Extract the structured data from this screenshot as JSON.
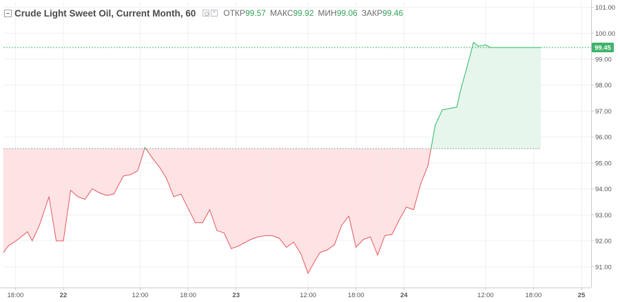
{
  "legend": {
    "title": "Crude Light Sweet Oil, Current Month, 60",
    "open_label": "ОТКР",
    "open_value": "99.57",
    "high_label": "МАКС",
    "high_value": "99.92",
    "low_label": "МИН",
    "low_value": "99.06",
    "close_label": "ЗАКР",
    "close_value": "99.46"
  },
  "colors": {
    "up": "#3dbb6e",
    "down": "#e8636a",
    "up_fill": "#e6f6ec",
    "down_fill": "#fde3e4",
    "price_badge": "#3fb36a",
    "grid": "#eef0f2",
    "axis_text": "#555555"
  },
  "chart_data": {
    "type": "area",
    "symbol": "Crude Light Sweet Oil",
    "interval": "60",
    "baseline": 95.55,
    "current_price": 99.45,
    "current_price_label": "99.45",
    "ylim": [
      90.2,
      101.2
    ],
    "yticks": [
      "91.00",
      "92.00",
      "93.00",
      "94.00",
      "95.00",
      "96.00",
      "97.00",
      "98.00",
      "99.00",
      "100.00",
      "101.00"
    ],
    "xticks": [
      {
        "label": "18:00",
        "x": 2.5,
        "bold": false
      },
      {
        "label": "22",
        "x": 12.5,
        "bold": true
      },
      {
        "label": "12:00",
        "x": 28.5,
        "bold": false
      },
      {
        "label": "18:00",
        "x": 38.5,
        "bold": false
      },
      {
        "label": "23",
        "x": 48.5,
        "bold": true
      },
      {
        "label": "12:00",
        "x": 63.5,
        "bold": false
      },
      {
        "label": "18:00",
        "x": 73.5,
        "bold": false
      },
      {
        "label": "24",
        "x": 83.5,
        "bold": true
      },
      {
        "label": "12:00",
        "x": 100.5,
        "bold": false
      },
      {
        "label": "18:00",
        "x": 110.5,
        "bold": false
      },
      {
        "label": "25",
        "x": 120.5,
        "bold": true
      }
    ],
    "xlim": [
      0,
      122.5
    ],
    "grid": true,
    "x": [
      0,
      1,
      3,
      5,
      6,
      7.5,
      9.5,
      11,
      12.5,
      14,
      15.5,
      17,
      18.5,
      20,
      21.5,
      23,
      25,
      26.5,
      28,
      29.5,
      31,
      32.5,
      34,
      35.5,
      37,
      38.5,
      40,
      41.5,
      43,
      44.5,
      46,
      47.5,
      49,
      50,
      51.5,
      53,
      54.5,
      56,
      57.5,
      59,
      60.5,
      62,
      63.5,
      65,
      66,
      67.5,
      69,
      70.5,
      72,
      73.5,
      75,
      76.5,
      78,
      79.5,
      81,
      82.5,
      84,
      85.5,
      87,
      88.5,
      90,
      91.5,
      93,
      94.5,
      95.5,
      96.5,
      98,
      99,
      100.5,
      101.5,
      103,
      104.5,
      105.5,
      106.5,
      108,
      109.5,
      111,
      112
    ],
    "y": [
      91.55,
      91.8,
      92.05,
      92.35,
      92.0,
      92.6,
      93.7,
      92.0,
      92.0,
      93.95,
      93.7,
      93.6,
      94.0,
      93.85,
      93.75,
      93.8,
      94.5,
      94.55,
      94.7,
      95.6,
      95.2,
      94.85,
      94.4,
      93.7,
      93.8,
      93.25,
      92.7,
      92.7,
      93.2,
      92.4,
      92.3,
      91.7,
      91.8,
      91.9,
      92.05,
      92.15,
      92.2,
      92.2,
      92.1,
      91.75,
      91.95,
      91.5,
      90.75,
      91.25,
      91.55,
      91.65,
      91.85,
      92.6,
      92.95,
      91.75,
      92.05,
      92.15,
      91.45,
      92.2,
      92.25,
      92.8,
      93.3,
      93.2,
      94.2,
      94.9,
      96.45,
      97.05,
      97.1,
      97.15,
      97.95,
      98.6,
      99.65,
      99.5,
      99.55,
      99.45,
      99.45,
      99.45,
      99.45,
      99.45,
      99.45,
      99.45,
      99.45,
      99.45
    ]
  }
}
